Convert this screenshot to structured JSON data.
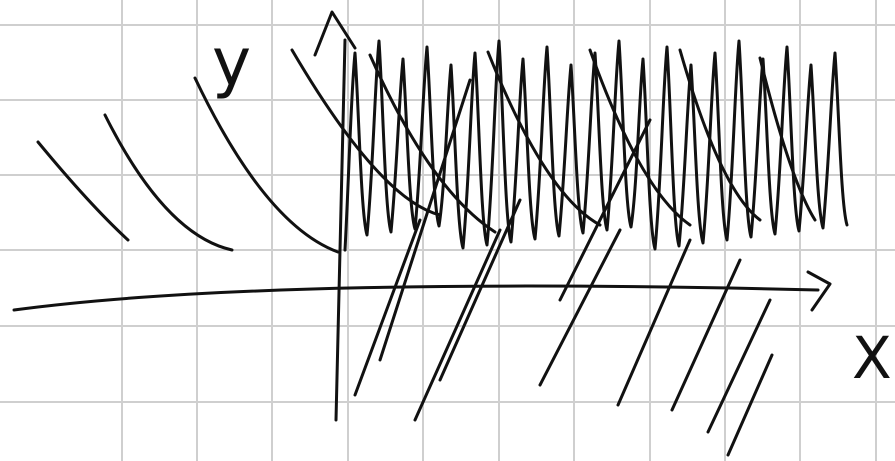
{
  "labels": {
    "y": "y",
    "x": "X"
  }
}
